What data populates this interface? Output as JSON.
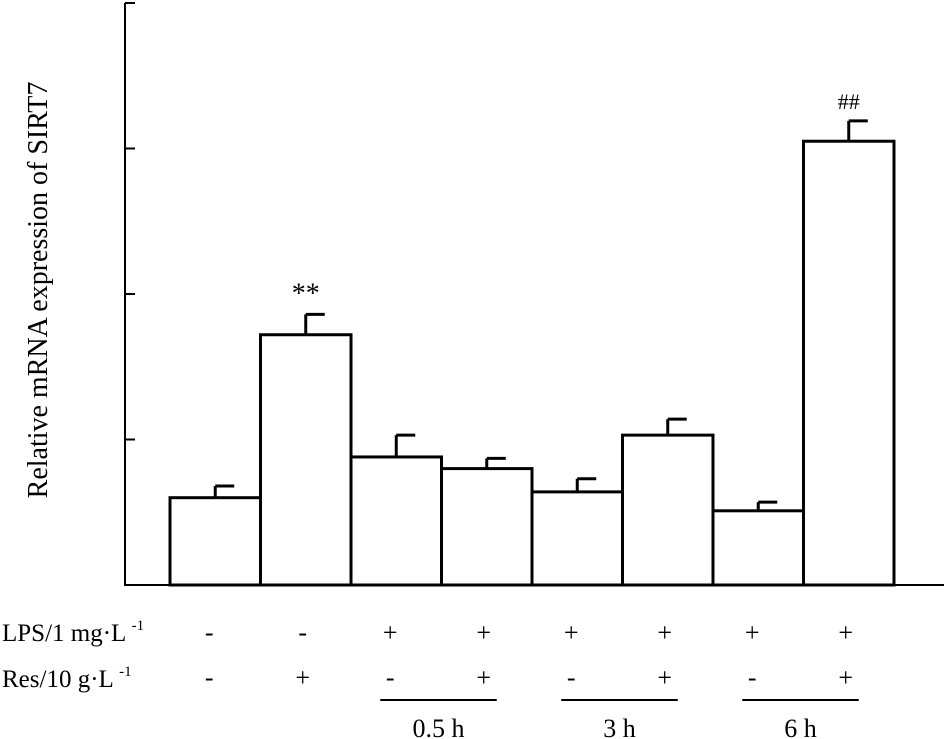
{
  "chart_data": {
    "type": "bar",
    "ylabel": "Relative mRNA expression of SIRT7",
    "ylim": [
      0,
      4
    ],
    "yticks": [
      1,
      2,
      3,
      4
    ],
    "ytick_labels_shown": false,
    "values": [
      0.6,
      1.72,
      0.88,
      0.8,
      0.64,
      1.03,
      0.51,
      3.05
    ],
    "errors": [
      0.08,
      0.14,
      0.15,
      0.07,
      0.09,
      0.11,
      0.06,
      0.14
    ],
    "annotations": [
      "",
      "**",
      "",
      "",
      "",
      "",
      "",
      "##"
    ],
    "bar_fill": "#ffffff",
    "bar_stroke": "#000000",
    "row_labels": {
      "lps": {
        "base": "LPS/1 mg·L",
        "sup": "-1"
      },
      "res": {
        "base": "Res/10 g·L",
        "sup": "-1"
      }
    },
    "lps_signs": [
      "-",
      "-",
      "+",
      "+",
      "+",
      "+",
      "+",
      "+"
    ],
    "res_signs": [
      "-",
      "+",
      "-",
      "+",
      "-",
      "+",
      "-",
      "+"
    ],
    "time_groups": [
      "0.5 h",
      "3 h",
      "6 h"
    ]
  }
}
